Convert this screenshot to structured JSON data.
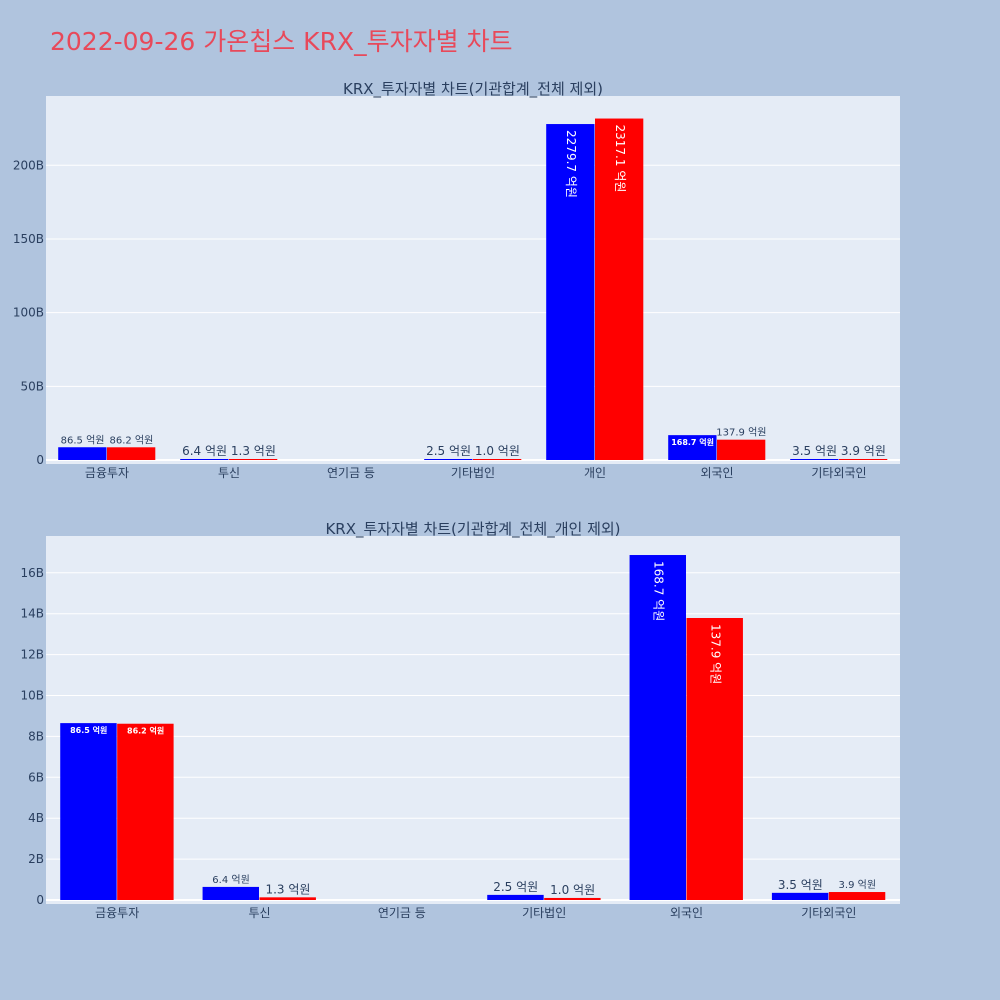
{
  "page": {
    "title": "2022-09-26 가온칩스 KRX_투자자별 차트"
  },
  "colors": {
    "buy": "#0000ff",
    "sell": "#ff0000",
    "title": "#e8495a",
    "background": "#b0c4de",
    "plot_background": "#e5ecf6"
  },
  "chart_data": [
    {
      "type": "bar",
      "title": "KRX_투자자별 차트(기관합계_전체 제외)",
      "categories": [
        "금융투자",
        "투신",
        "연기금 등",
        "기타법인",
        "개인",
        "외국인",
        "기타외국인"
      ],
      "series": [
        {
          "color": "#0000ff",
          "values": [
            8650000000,
            640000000,
            0,
            250000000,
            227970000000,
            16870000000,
            350000000
          ],
          "labels": [
            "86.5 억원",
            "6.4 억원",
            "",
            "2.5 억원",
            "2279.7 억원",
            "168.7 억원",
            "3.5 억원"
          ]
        },
        {
          "color": "#ff0000",
          "values": [
            8620000000,
            130000000,
            0,
            100000000,
            231710000000,
            13790000000,
            390000000
          ],
          "labels": [
            "86.2 억원",
            "1.3 억원",
            "",
            "1.0 억원",
            "2317.1 억원",
            "137.9 억원",
            "3.9 억원"
          ]
        }
      ],
      "ylim": [
        0,
        247000000000
      ],
      "yticks": [
        0,
        50000000000,
        100000000000,
        150000000000,
        200000000000
      ],
      "ytick_labels": [
        "0",
        "50B",
        "100B",
        "150B",
        "200B"
      ],
      "grid": true
    },
    {
      "type": "bar",
      "title": "KRX_투자자별 차트(기관합계_전체_개인 제외)",
      "categories": [
        "금융투자",
        "투신",
        "연기금 등",
        "기타법인",
        "외국인",
        "기타외국인"
      ],
      "series": [
        {
          "color": "#0000ff",
          "values": [
            8650000000,
            640000000,
            0,
            250000000,
            16870000000,
            350000000
          ],
          "labels": [
            "86.5 억원",
            "6.4 억원",
            "",
            "2.5 억원",
            "168.7 억원",
            "3.5 억원"
          ]
        },
        {
          "color": "#ff0000",
          "values": [
            8620000000,
            130000000,
            0,
            100000000,
            13790000000,
            390000000
          ],
          "labels": [
            "86.2 억원",
            "1.3 억원",
            "",
            "1.0 억원",
            "137.9 억원",
            "3.9 억원"
          ]
        }
      ],
      "ylim": [
        0,
        17800000000
      ],
      "yticks": [
        0,
        2000000000,
        4000000000,
        6000000000,
        8000000000,
        10000000000,
        12000000000,
        14000000000,
        16000000000
      ],
      "ytick_labels": [
        "0",
        "2B",
        "4B",
        "6B",
        "8B",
        "10B",
        "12B",
        "14B",
        "16B"
      ],
      "grid": true
    }
  ]
}
